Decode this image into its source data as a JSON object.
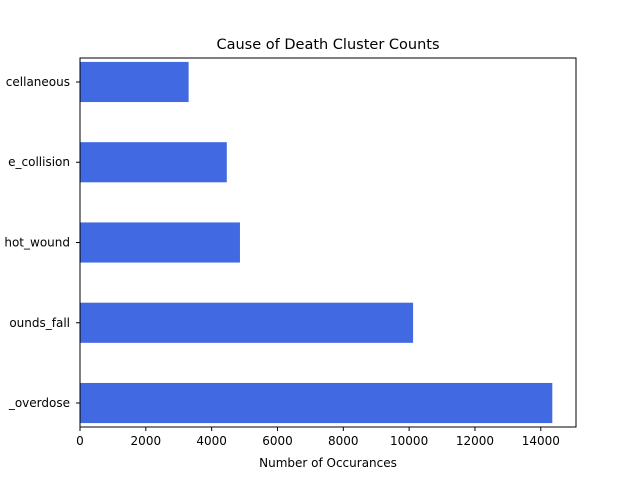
{
  "chart_data": {
    "type": "bar",
    "orientation": "horizontal",
    "title": "Cause of Death Cluster Counts",
    "xlabel": "Number of Occurances",
    "ylabel": "",
    "categories": [
      "_overdose",
      "ounds_fall",
      "hot_wound",
      "e_collision",
      "cellaneous"
    ],
    "values": [
      14350,
      10120,
      4860,
      4460,
      3300
    ],
    "xlim": [
      0,
      15070
    ],
    "xticks": [
      0,
      2000,
      4000,
      6000,
      8000,
      10000,
      12000,
      14000
    ],
    "bar_color": "#4169e1",
    "grid": false,
    "legend": "none"
  }
}
